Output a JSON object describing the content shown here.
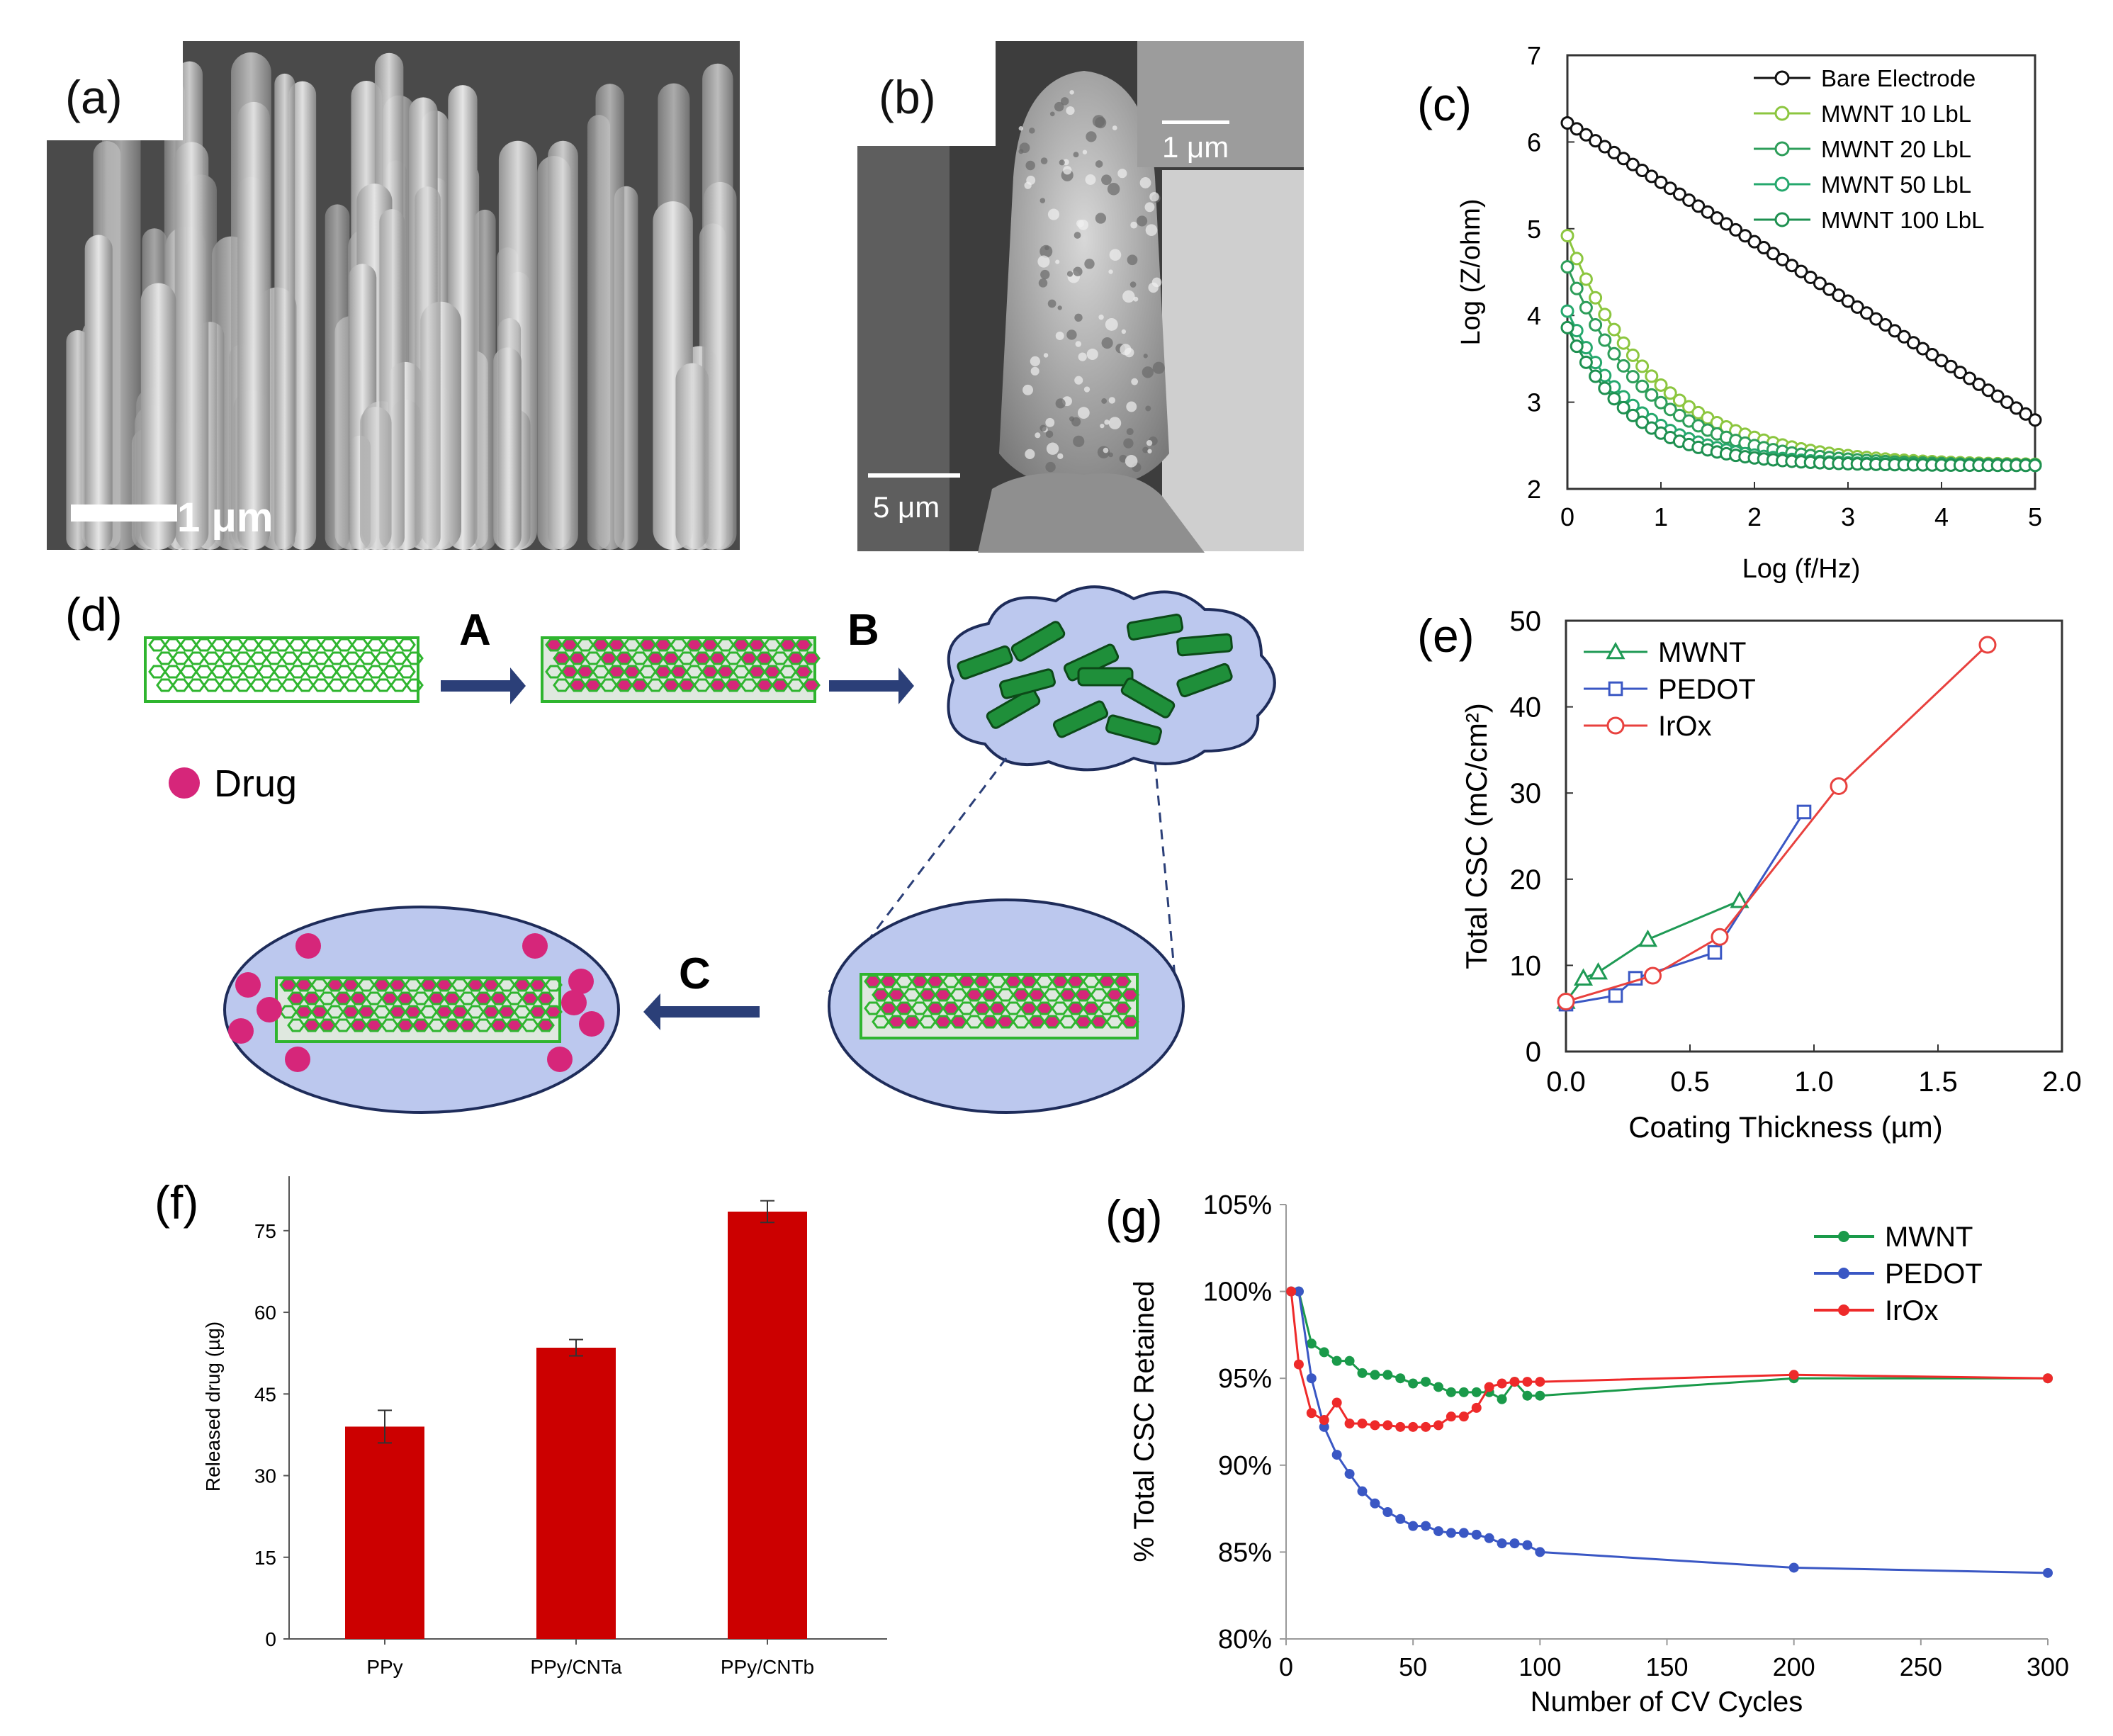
{
  "panel_labels": {
    "a": "(a)",
    "b": "(b)",
    "c": "(c)",
    "d": "(d)",
    "e": "(e)",
    "f": "(f)",
    "g": "(g)"
  },
  "micrographs": {
    "a": {
      "scale_bar": "1 μm"
    },
    "b": {
      "scale_bar": "5 μm",
      "inset_scale_bar": "1 μm"
    }
  },
  "schematic": {
    "step_a": "A",
    "step_b": "B",
    "step_c": "C",
    "legend_drug": "Drug",
    "colors": {
      "nanotube": "#2fb52f",
      "drug": "#d6267a",
      "cloud": "#bcc8ee",
      "arrow": "#2b3f78"
    }
  },
  "chart_data": [
    {
      "id": "c",
      "type": "line",
      "title": "",
      "xlabel": "Log (f/Hz)",
      "ylabel": "Log (Z/ohm)",
      "xlim": [
        0,
        5
      ],
      "ylim": [
        2,
        7
      ],
      "xticks": [
        "0",
        "1",
        "2",
        "3",
        "4",
        "5"
      ],
      "yticks": [
        "2",
        "3",
        "4",
        "5",
        "6",
        "7"
      ],
      "legend_position": "top-right",
      "series": [
        {
          "name": "Bare Electrode",
          "color": "#111111",
          "x0": 0,
          "y0": 6.22,
          "slope": -0.685
        },
        {
          "name": "MWNT 10 LbL",
          "color": "#8cc63f",
          "x0": 0,
          "y0": 4.92,
          "a": 2.65,
          "k": 1.05
        },
        {
          "name": "MWNT 20 LbL",
          "color": "#2e9e5a",
          "x0": 0,
          "y0": 4.56,
          "a": 2.29,
          "k": 1.15
        },
        {
          "name": "MWNT 50 LbL",
          "color": "#25a86d",
          "x0": 0,
          "y0": 4.05,
          "a": 1.78,
          "k": 1.35
        },
        {
          "name": "MWNT 100 LbL",
          "color": "#1e9050",
          "x0": 0,
          "y0": 3.86,
          "a": 1.59,
          "k": 1.45
        }
      ],
      "floor": 2.27
    },
    {
      "id": "e",
      "type": "line",
      "title": "",
      "xlabel": "Coating Thickness (µm)",
      "ylabel": "Total CSC (mC/cm²)",
      "xlim": [
        0,
        2
      ],
      "ylim": [
        0,
        50
      ],
      "xticks": [
        "0.0",
        "0.5",
        "1.0",
        "1.5",
        "2.0"
      ],
      "yticks": [
        "0",
        "10",
        "20",
        "30",
        "40",
        "50"
      ],
      "legend_position": "top-left",
      "series": [
        {
          "name": "MWNT",
          "color": "#1f9a55",
          "marker": "triangle",
          "x": [
            0,
            0.07,
            0.13,
            0.33,
            0.7
          ],
          "y": [
            5.8,
            8.5,
            9.2,
            13,
            17.5
          ]
        },
        {
          "name": "PEDOT",
          "color": "#3a57c4",
          "marker": "square",
          "x": [
            0,
            0.2,
            0.28,
            0.6,
            0.96
          ],
          "y": [
            5.5,
            6.5,
            8.5,
            11.5,
            27.8
          ]
        },
        {
          "name": "IrOx",
          "color": "#e8413e",
          "marker": "circle",
          "x": [
            0,
            0.35,
            0.62,
            1.1,
            1.7
          ],
          "y": [
            5.8,
            8.8,
            13.3,
            30.8,
            47.2
          ]
        }
      ]
    },
    {
      "id": "f",
      "type": "bar",
      "title": "",
      "xlabel": "",
      "ylabel": "Released drug (µg)",
      "categories": [
        "PPy",
        "PPy/CNTa",
        "PPy/CNTb"
      ],
      "values": [
        39,
        53.5,
        78.5
      ],
      "errors": [
        3,
        1.5,
        2
      ],
      "ylim": [
        0,
        85
      ],
      "yticks": [
        "0",
        "15",
        "30",
        "45",
        "60",
        "75"
      ],
      "color": "#cc0000"
    },
    {
      "id": "g",
      "type": "line",
      "title": "",
      "xlabel": "Number of CV Cycles",
      "ylabel": "% Total CSC Retained",
      "xlim": [
        0,
        300
      ],
      "ylim": [
        80,
        105
      ],
      "xticks": [
        "0",
        "50",
        "100",
        "150",
        "200",
        "250",
        "300"
      ],
      "yticks": [
        "80%",
        "85%",
        "90%",
        "95%",
        "100%",
        "105%"
      ],
      "legend_position": "top-right",
      "series": [
        {
          "name": "MWNT",
          "color": "#1a9a4a",
          "x": [
            2,
            5,
            10,
            15,
            20,
            25,
            30,
            35,
            40,
            45,
            50,
            55,
            60,
            65,
            70,
            75,
            80,
            85,
            90,
            95,
            100,
            200,
            300
          ],
          "y": [
            100,
            100,
            97,
            96.5,
            96,
            96,
            95.3,
            95.2,
            95.2,
            95,
            94.7,
            94.8,
            94.5,
            94.2,
            94.2,
            94.2,
            94.2,
            93.8,
            94.8,
            94,
            94,
            95,
            95
          ]
        },
        {
          "name": "PEDOT",
          "color": "#3a57c4",
          "x": [
            2,
            5,
            10,
            15,
            20,
            25,
            30,
            35,
            40,
            45,
            50,
            55,
            60,
            65,
            70,
            75,
            80,
            85,
            90,
            95,
            100,
            200,
            300
          ],
          "y": [
            100,
            100,
            95,
            92.2,
            90.6,
            89.5,
            88.5,
            87.8,
            87.3,
            86.9,
            86.5,
            86.5,
            86.2,
            86.1,
            86.1,
            86,
            85.8,
            85.5,
            85.5,
            85.4,
            85,
            84.1,
            83.8
          ]
        },
        {
          "name": "IrOx",
          "color": "#ee2a2a",
          "x": [
            2,
            5,
            10,
            15,
            20,
            25,
            30,
            35,
            40,
            45,
            50,
            55,
            60,
            65,
            70,
            75,
            80,
            85,
            90,
            95,
            100,
            200,
            300
          ],
          "y": [
            100,
            95.8,
            93,
            92.6,
            93.6,
            92.4,
            92.4,
            92.3,
            92.3,
            92.2,
            92.2,
            92.2,
            92.3,
            92.8,
            92.8,
            93.3,
            94.5,
            94.7,
            94.8,
            94.8,
            94.8,
            95.2,
            95
          ]
        }
      ]
    }
  ]
}
